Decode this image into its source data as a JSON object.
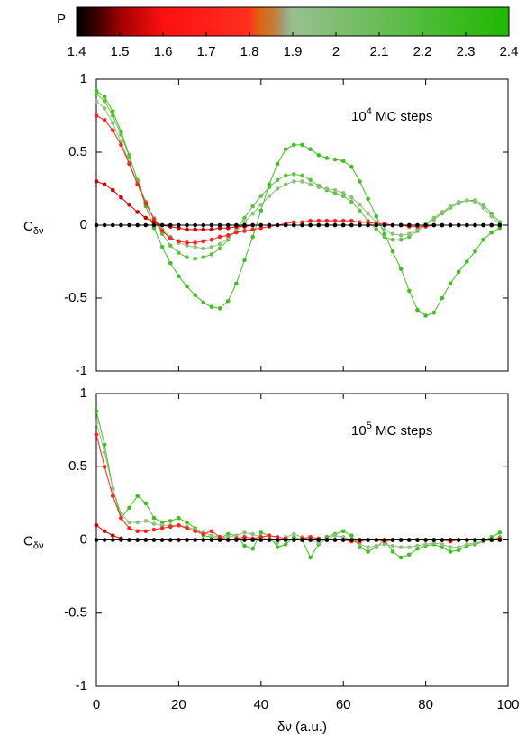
{
  "colorbar": {
    "label": "P",
    "lim": [
      1.4,
      2.4
    ],
    "ticks": [
      1.4,
      1.5,
      1.6,
      1.7,
      1.8,
      1.9,
      2,
      2.1,
      2.2,
      2.3,
      2.4
    ],
    "stops": [
      {
        "value": 1.4,
        "color": "#000000"
      },
      {
        "value": 1.45,
        "color": "#400000"
      },
      {
        "value": 1.5,
        "color": "#a00000"
      },
      {
        "value": 1.6,
        "color": "#ff1010"
      },
      {
        "value": 1.8,
        "color": "#ff3020"
      },
      {
        "value": 1.82,
        "color": "#e06010"
      },
      {
        "value": 1.86,
        "color": "#c08040"
      },
      {
        "value": 1.88,
        "color": "#a0a080"
      },
      {
        "value": 1.9,
        "color": "#98c090"
      },
      {
        "value": 2.4,
        "color": "#20b800"
      }
    ]
  },
  "chart_data": [
    {
      "type": "line",
      "ylabel": {
        "text": "C",
        "subscript": "δν"
      },
      "annotation": {
        "text": "10",
        "superscript": "4",
        "suffix": " MC steps"
      },
      "xlim": [
        0,
        100
      ],
      "ylim": [
        -1,
        1
      ],
      "yticks": [
        1,
        0.5,
        0,
        -0.5,
        -1
      ],
      "x": [
        0,
        2,
        4,
        6,
        8,
        10,
        12,
        14,
        16,
        18,
        20,
        22,
        24,
        26,
        28,
        30,
        32,
        34,
        36,
        38,
        40,
        42,
        44,
        46,
        48,
        50,
        52,
        54,
        56,
        58,
        60,
        62,
        64,
        66,
        68,
        70,
        72,
        74,
        76,
        78,
        80,
        82,
        84,
        86,
        88,
        90,
        92,
        94,
        96,
        98
      ],
      "series": [
        {
          "color": "#40c020",
          "values": [
            0.92,
            0.88,
            0.78,
            0.64,
            0.48,
            0.3,
            0.13,
            -0.02,
            -0.15,
            -0.26,
            -0.35,
            -0.42,
            -0.48,
            -0.53,
            -0.56,
            -0.57,
            -0.52,
            -0.4,
            -0.24,
            -0.08,
            0.1,
            0.28,
            0.42,
            0.52,
            0.55,
            0.55,
            0.52,
            0.48,
            0.46,
            0.45,
            0.44,
            0.4,
            0.3,
            0.18,
            0.06,
            -0.06,
            -0.18,
            -0.3,
            -0.45,
            -0.58,
            -0.62,
            -0.6,
            -0.5,
            -0.4,
            -0.32,
            -0.25,
            -0.18,
            -0.1,
            -0.05,
            -0.02
          ]
        },
        {
          "color": "#60c040",
          "values": [
            0.9,
            0.85,
            0.75,
            0.62,
            0.47,
            0.31,
            0.16,
            0.04,
            -0.06,
            -0.14,
            -0.19,
            -0.22,
            -0.23,
            -0.22,
            -0.2,
            -0.16,
            -0.1,
            -0.03,
            0.05,
            0.13,
            0.2,
            0.26,
            0.31,
            0.34,
            0.35,
            0.34,
            0.31,
            0.27,
            0.24,
            0.22,
            0.2,
            0.16,
            0.1,
            0.03,
            -0.03,
            -0.08,
            -0.1,
            -0.1,
            -0.08,
            -0.04,
            0,
            0.04,
            0.08,
            0.12,
            0.15,
            0.17,
            0.17,
            0.14,
            0.08,
            0.02
          ]
        },
        {
          "color": "#90c080",
          "values": [
            0.85,
            0.8,
            0.7,
            0.57,
            0.43,
            0.28,
            0.15,
            0.05,
            -0.03,
            -0.08,
            -0.12,
            -0.14,
            -0.15,
            -0.16,
            -0.15,
            -0.13,
            -0.09,
            -0.04,
            0.02,
            0.08,
            0.14,
            0.2,
            0.25,
            0.28,
            0.3,
            0.3,
            0.28,
            0.26,
            0.25,
            0.24,
            0.22,
            0.19,
            0.14,
            0.08,
            0.02,
            -0.03,
            -0.06,
            -0.07,
            -0.06,
            -0.03,
            0.01,
            0.05,
            0.09,
            0.13,
            0.16,
            0.17,
            0.16,
            0.12,
            0.06,
            0
          ]
        },
        {
          "color": "#ff2020",
          "values": [
            0.75,
            0.72,
            0.65,
            0.55,
            0.42,
            0.28,
            0.15,
            0.04,
            -0.04,
            -0.09,
            -0.11,
            -0.12,
            -0.12,
            -0.11,
            -0.1,
            -0.08,
            -0.07,
            -0.05,
            -0.04,
            -0.03,
            -0.02,
            -0.01,
            0,
            0.01,
            0.02,
            0.02,
            0.03,
            0.03,
            0.03,
            0.03,
            0.03,
            0.03,
            0.02,
            0.02,
            0.01,
            0.01,
            0,
            0,
            -0.01,
            -0.01,
            -0.01,
            0,
            0,
            0,
            0,
            0,
            0,
            0,
            0,
            0
          ]
        },
        {
          "color": "#cc0000",
          "values": [
            0.3,
            0.28,
            0.24,
            0.19,
            0.14,
            0.09,
            0.05,
            0.02,
            0,
            -0.01,
            -0.02,
            -0.03,
            -0.03,
            -0.03,
            -0.03,
            -0.02,
            -0.02,
            -0.01,
            -0.01,
            0,
            0,
            0,
            0,
            0,
            0,
            0,
            0,
            0,
            0,
            0,
            0,
            0,
            0,
            0,
            0,
            0,
            0,
            0,
            0,
            0,
            0,
            0,
            0,
            0,
            0,
            0,
            0,
            0,
            0,
            0
          ]
        },
        {
          "color": "#000000",
          "values": [
            0,
            0,
            0,
            0,
            0,
            0,
            0,
            0,
            0,
            0,
            0,
            0,
            0,
            0,
            0,
            0,
            0,
            0,
            0,
            0,
            0,
            0,
            0,
            0,
            0,
            0,
            0,
            0,
            0,
            0,
            0,
            0,
            0,
            0,
            0,
            0,
            0,
            0,
            0,
            0,
            0,
            0,
            0,
            0,
            0,
            0,
            0,
            0,
            0,
            0
          ]
        }
      ]
    },
    {
      "type": "line",
      "ylabel": {
        "text": "C",
        "subscript": "δν"
      },
      "annotation": {
        "text": "10",
        "superscript": "5",
        "suffix": " MC steps"
      },
      "xlabel": "δν (a.u.)",
      "xlim": [
        0,
        100
      ],
      "ylim": [
        -1,
        1
      ],
      "xticks": [
        0,
        20,
        40,
        60,
        80,
        100
      ],
      "yticks": [
        1,
        0.5,
        0,
        -0.5,
        -1
      ],
      "x": [
        0,
        2,
        4,
        6,
        8,
        10,
        12,
        14,
        16,
        18,
        20,
        22,
        24,
        26,
        28,
        30,
        32,
        34,
        36,
        38,
        40,
        42,
        44,
        46,
        48,
        50,
        52,
        54,
        56,
        58,
        60,
        62,
        64,
        66,
        68,
        70,
        72,
        74,
        76,
        78,
        80,
        82,
        84,
        86,
        88,
        90,
        92,
        94,
        96,
        98
      ],
      "series": [
        {
          "color": "#40c020",
          "values": [
            0.88,
            0.65,
            0.35,
            0.15,
            0.22,
            0.3,
            0.25,
            0.15,
            0.12,
            0.13,
            0.15,
            0.12,
            0.08,
            0.03,
            0.02,
            0.01,
            0.04,
            0.03,
            -0.04,
            -0.06,
            0.05,
            0.03,
            -0.05,
            -0.03,
            0.02,
            0,
            -0.12,
            -0.03,
            0.02,
            0.04,
            0.06,
            0.03,
            -0.05,
            -0.08,
            -0.05,
            0,
            -0.08,
            -0.12,
            -0.1,
            -0.06,
            -0.04,
            -0.03,
            -0.05,
            -0.08,
            -0.07,
            -0.04,
            -0.03,
            -0.01,
            0.02,
            0.05
          ]
        },
        {
          "color": "#90c080",
          "values": [
            0.8,
            0.6,
            0.35,
            0.18,
            0.12,
            0.12,
            0.13,
            0.11,
            0.1,
            0.1,
            0.1,
            0.09,
            0.07,
            0.05,
            0.03,
            0.02,
            0.02,
            0.03,
            0.05,
            0.04,
            0.02,
            0,
            -0.02,
            0.02,
            0.04,
            0.02,
            0,
            -0.02,
            0,
            0.03,
            0.02,
            0,
            -0.03,
            -0.05,
            -0.04,
            -0.03,
            -0.04,
            -0.05,
            -0.05,
            -0.04,
            -0.03,
            -0.02,
            -0.03,
            -0.05,
            -0.05,
            -0.03,
            -0.02,
            -0.01,
            0,
            0.02
          ]
        },
        {
          "color": "#ff2020",
          "values": [
            0.72,
            0.5,
            0.3,
            0.15,
            0.08,
            0.06,
            0.06,
            0.07,
            0.08,
            0.09,
            0.1,
            0.08,
            0.06,
            0.04,
            0.06,
            0.02,
            0,
            0.01,
            0.02,
            0.01,
            0.02,
            0.03,
            0.02,
            0.01,
            0,
            0.01,
            0.02,
            0.01,
            0,
            0,
            0,
            -0.01,
            -0.01,
            0,
            0,
            -0.01,
            0,
            0,
            0,
            0,
            0,
            0,
            0,
            -0.01,
            0,
            0,
            0,
            0,
            0,
            0.01
          ]
        },
        {
          "color": "#cc0000",
          "values": [
            0.1,
            0.06,
            0.03,
            0.01,
            0,
            0,
            0,
            0,
            0,
            0,
            0,
            0,
            0,
            0,
            0,
            0,
            0,
            0,
            0,
            0,
            0,
            0,
            0,
            0,
            0,
            0,
            0,
            0,
            0,
            0,
            0,
            0,
            0,
            0,
            0,
            0,
            0,
            0,
            0,
            0,
            0,
            0,
            0,
            0,
            0,
            0,
            0,
            0,
            0,
            0
          ]
        },
        {
          "color": "#000000",
          "values": [
            0,
            0,
            0,
            0,
            0,
            0,
            0,
            0,
            0,
            0,
            0,
            0,
            0,
            0,
            0,
            0,
            0,
            0,
            0,
            0,
            0,
            0,
            0,
            0,
            0,
            0,
            0,
            0,
            0,
            0,
            0,
            0,
            0,
            0,
            0,
            0,
            0,
            0,
            0,
            0,
            0,
            0,
            0,
            0,
            0,
            0,
            0,
            0,
            0,
            0
          ]
        }
      ]
    }
  ]
}
